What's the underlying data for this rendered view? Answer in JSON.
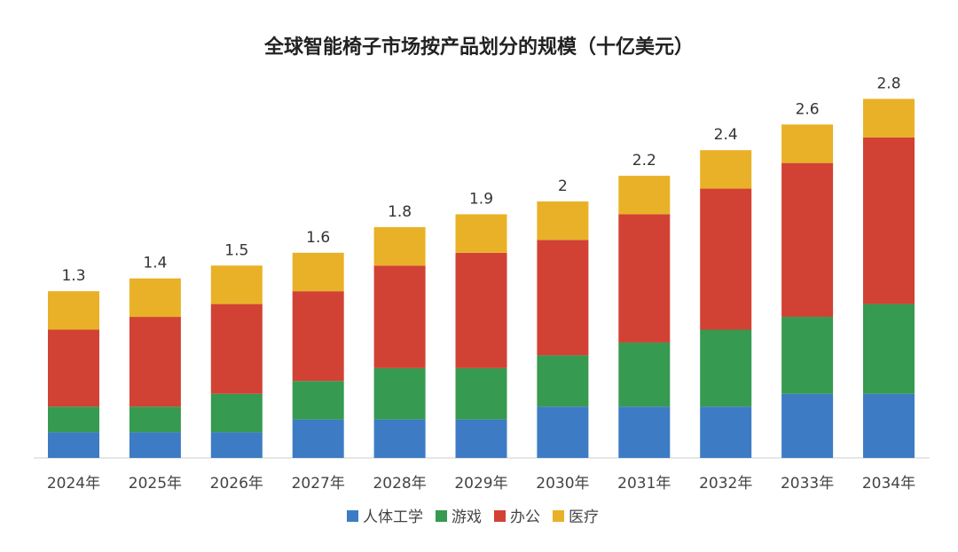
{
  "chart_data": {
    "type": "bar",
    "stacked": true,
    "title": "全球智能椅子市场按产品划分的规模（十亿美元）",
    "xlabel": "",
    "ylabel": "",
    "ylim": [
      0,
      3.0
    ],
    "grid": false,
    "legend_position": "bottom",
    "categories": [
      "2024年",
      "2025年",
      "2026年",
      "2027年",
      "2028年",
      "2029年",
      "2030年",
      "2031年",
      "2032年",
      "2033年",
      "2034年"
    ],
    "series": [
      {
        "name": "人体工学",
        "color": "#3d7cc4",
        "values": [
          0.2,
          0.2,
          0.2,
          0.3,
          0.3,
          0.3,
          0.4,
          0.4,
          0.4,
          0.5,
          0.5
        ]
      },
      {
        "name": "游戏",
        "color": "#369a51",
        "values": [
          0.2,
          0.2,
          0.3,
          0.3,
          0.4,
          0.4,
          0.4,
          0.5,
          0.6,
          0.6,
          0.7
        ]
      },
      {
        "name": "办公",
        "color": "#d14234",
        "values": [
          0.6,
          0.7,
          0.7,
          0.7,
          0.8,
          0.9,
          0.9,
          1.0,
          1.1,
          1.2,
          1.3
        ]
      },
      {
        "name": "医疗",
        "color": "#e9b127",
        "values": [
          0.3,
          0.3,
          0.3,
          0.3,
          0.3,
          0.3,
          0.3,
          0.3,
          0.3,
          0.3,
          0.3
        ]
      }
    ],
    "totals": [
      "1.3",
      "1.4",
      "1.5",
      "1.6",
      "1.8",
      "1.9",
      "2",
      "2.2",
      "2.4",
      "2.6",
      "2.8"
    ]
  }
}
